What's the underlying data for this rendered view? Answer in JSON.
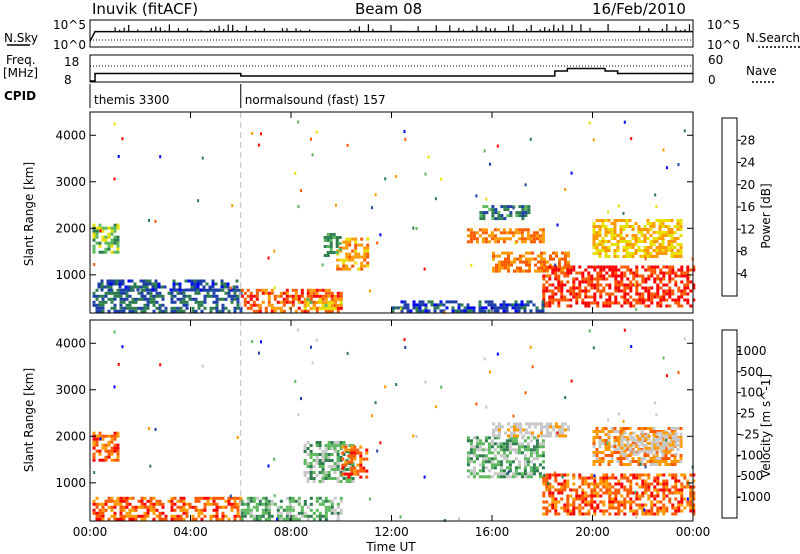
{
  "header": {
    "station": "Inuvik (fitACF)",
    "beam": "Beam 08",
    "date": "16/Feb/2010"
  },
  "labels": {
    "nsky": "N.Sky",
    "nsearch": "N.Search",
    "freq_line1": "Freq.",
    "freq_line2": "[MHz]",
    "nave": "Nave",
    "cpid": "CPID",
    "nsky_ticks": [
      "10^5",
      "10^0"
    ],
    "nsearch_ticks": [
      "10^5",
      "10^0"
    ],
    "freq_ticks": [
      "18",
      "8"
    ],
    "nave_ticks": [
      "60",
      "0"
    ]
  },
  "cpid_segments": [
    {
      "label": "themis 3300",
      "start_h": 0
    },
    {
      "label": "normalsound (fast) 157",
      "start_h": 6
    }
  ],
  "colors": {
    "power_scale": [
      "#0000ff",
      "#1f3fa8",
      "#2e7d4f",
      "#5cb85c",
      "#e8e000",
      "#ff9a00",
      "#ff5a00",
      "#ff0000"
    ],
    "velocity_scale": [
      "#ff0000",
      "#ff5a00",
      "#ff9a00",
      "#c8c8c8",
      "#c8c8c8",
      "#5cb85c",
      "#2e7d4f",
      "#1f3fa8",
      "#0000ff"
    ]
  },
  "chart_data": [
    {
      "type": "heatmap",
      "name": "power",
      "xlabel": "",
      "ylabel": "Slant Range [km]",
      "x_ticks": [
        "00:00",
        "04:00",
        "08:00",
        "12:00",
        "16:00",
        "20:00",
        "00:00"
      ],
      "x_range_h": [
        0,
        24
      ],
      "y_ticks": [
        1000,
        2000,
        3000,
        4000
      ],
      "ylim": [
        180,
        4500
      ],
      "colorbar_label": "Power [dB]",
      "colorbar_ticks": [
        4,
        8,
        12,
        16,
        20,
        24,
        28
      ],
      "colorbar_range": [
        0,
        32
      ],
      "regions": [
        {
          "t0": 0.1,
          "t1": 6.0,
          "r0": 200,
          "r1": 700,
          "value": 8
        },
        {
          "t0": 0.1,
          "t1": 1.1,
          "r0": 1500,
          "r1": 2100,
          "value": 14
        },
        {
          "t0": 0.3,
          "t1": 5.8,
          "r0": 700,
          "r1": 900,
          "value": 6
        },
        {
          "t0": 6.0,
          "t1": 10.0,
          "r0": 200,
          "r1": 700,
          "value": 26
        },
        {
          "t0": 8.5,
          "t1": 10.0,
          "r0": 300,
          "r1": 500,
          "value": 18
        },
        {
          "t0": 9.8,
          "t1": 11.0,
          "r0": 1100,
          "r1": 1800,
          "value": 22
        },
        {
          "t0": 9.3,
          "t1": 9.9,
          "r0": 1400,
          "r1": 1900,
          "value": 12
        },
        {
          "t0": 15.0,
          "t1": 18.0,
          "r0": 1700,
          "r1": 2000,
          "value": 24
        },
        {
          "t0": 15.5,
          "t1": 17.5,
          "r0": 2200,
          "r1": 2500,
          "value": 10
        },
        {
          "t0": 16.0,
          "t1": 19.0,
          "r0": 1100,
          "r1": 1500,
          "value": 24
        },
        {
          "t0": 18.0,
          "t1": 24.0,
          "r0": 300,
          "r1": 1200,
          "value": 28
        },
        {
          "t0": 20.0,
          "t1": 23.5,
          "r0": 1400,
          "r1": 2200,
          "value": 20
        },
        {
          "t0": 12.0,
          "t1": 18.0,
          "r0": 200,
          "r1": 450,
          "value": 6
        }
      ]
    },
    {
      "type": "heatmap",
      "name": "velocity",
      "xlabel": "Time UT",
      "ylabel": "Slant Range [km]",
      "x_ticks": [
        "00:00",
        "04:00",
        "08:00",
        "12:00",
        "16:00",
        "20:00",
        "00:00"
      ],
      "x_range_h": [
        0,
        24
      ],
      "y_ticks": [
        1000,
        2000,
        3000,
        4000
      ],
      "ylim": [
        180,
        4500
      ],
      "colorbar_label": "Velocity [m s^-1]",
      "colorbar_ticks": [
        -1000,
        -500,
        -100,
        -25,
        25,
        100,
        500,
        1000
      ],
      "regions": [
        {
          "t0": 0.1,
          "t1": 6.0,
          "r0": 200,
          "r1": 700,
          "value": -300
        },
        {
          "t0": 0.1,
          "t1": 1.1,
          "r0": 1500,
          "r1": 2100,
          "value": -200
        },
        {
          "t0": 6.0,
          "t1": 10.0,
          "r0": 200,
          "r1": 700,
          "value": 150
        },
        {
          "t0": 8.5,
          "t1": 10.5,
          "r0": 1000,
          "r1": 1900,
          "value": 300
        },
        {
          "t0": 10.0,
          "t1": 11.0,
          "r0": 1100,
          "r1": 1800,
          "value": -300
        },
        {
          "t0": 15.0,
          "t1": 18.0,
          "r0": 1100,
          "r1": 2000,
          "value": 300
        },
        {
          "t0": 16.0,
          "t1": 19.0,
          "r0": 2000,
          "r1": 2300,
          "value": 0
        },
        {
          "t0": 18.0,
          "t1": 24.0,
          "r0": 300,
          "r1": 1200,
          "value": -300
        },
        {
          "t0": 20.0,
          "t1": 23.5,
          "r0": 1400,
          "r1": 2200,
          "value": -60
        },
        {
          "t0": 21.0,
          "t1": 23.5,
          "r0": 1600,
          "r1": 2100,
          "value": 0
        }
      ]
    },
    {
      "type": "line",
      "name": "nsky",
      "x": [
        0,
        0.2,
        1,
        2,
        4,
        6,
        8,
        12,
        16,
        18,
        20,
        22,
        24
      ],
      "values": [
        1,
        3,
        3,
        3,
        3,
        3,
        3,
        3,
        3,
        3,
        3,
        3,
        3
      ]
    },
    {
      "type": "line",
      "name": "frequency",
      "x": [
        0,
        0.2,
        6,
        18.5,
        19,
        20.5,
        21,
        24
      ],
      "values": [
        8,
        11,
        10,
        12,
        13,
        12,
        11,
        11
      ]
    }
  ]
}
